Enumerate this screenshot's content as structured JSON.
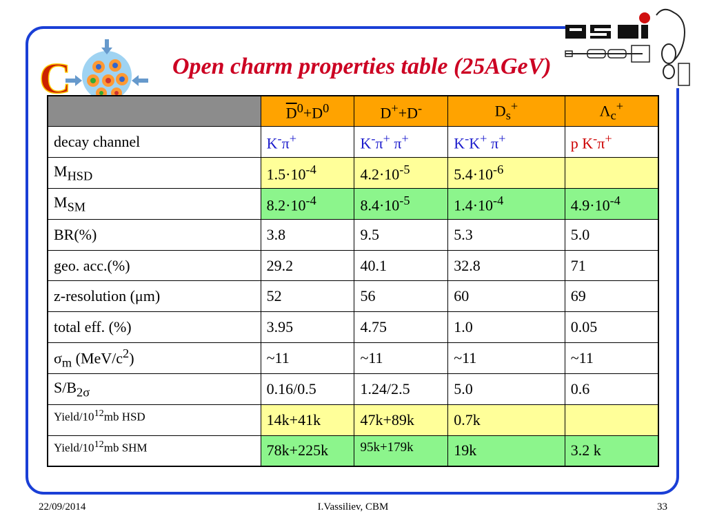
{
  "title": "Open charm properties table (25AGeV)",
  "columns": [
    {
      "main": "D",
      "sup1": "0",
      "mid": "+D",
      "sup2": "0"
    },
    {
      "main": "D",
      "sup1": "+",
      "mid": "+D",
      "sup2": "-"
    },
    {
      "main": "D",
      "sub": "s",
      "sup": "+"
    },
    {
      "main": "Λ",
      "sub": "c",
      "sup": "+"
    }
  ],
  "rows": {
    "decay_channel": {
      "label": "decay channel",
      "c1": {
        "a": "K",
        "as": "-",
        "b": "π",
        "bs": "+"
      },
      "c2": {
        "a": "K",
        "as": "-",
        "b": "π",
        "bs": "+",
        "c": " π",
        "cs": "+"
      },
      "c3": {
        "a": "K",
        "as": "-",
        "b": "K",
        "bs": "+",
        "c": " π",
        "cs": "+"
      },
      "c4": {
        "p": "p ",
        "a": "K",
        "as": "-",
        "b": "π",
        "bs": "+"
      }
    },
    "m_hsd": {
      "label_main": "M",
      "label_sub": "HSD",
      "values": [
        {
          "m": "1.5·10",
          "e": "-4"
        },
        {
          "m": "4.2·10",
          "e": "-5"
        },
        {
          "m": "5.4·10",
          "e": "-6"
        },
        {
          "m": "",
          "e": ""
        }
      ]
    },
    "m_sm": {
      "label_main": "M",
      "label_sub": "SM",
      "values": [
        {
          "m": "8.2·10",
          "e": "-4"
        },
        {
          "m": "8.4·10",
          "e": "-5"
        },
        {
          "m": "1.4·10",
          "e": "-4"
        },
        {
          "m": "4.9·10",
          "e": "-4"
        }
      ]
    },
    "br": {
      "label": "BR(%)",
      "values": [
        "3.8",
        "9.5",
        "5.3",
        "5.0"
      ]
    },
    "geo_acc": {
      "label": "geo. acc.(%)",
      "values": [
        "29.2",
        "40.1",
        "32.8",
        "71"
      ]
    },
    "z_res": {
      "label": "z-resolution (μm)",
      "values": [
        "52",
        "56",
        "60",
        "69"
      ]
    },
    "total_eff": {
      "label": "total eff. (%)",
      "values": [
        "3.95",
        "4.75",
        "1.0",
        "0.05"
      ]
    },
    "sigma_m": {
      "label_main": "σ",
      "label_sub": "m",
      "label_rest": " (MeV/c",
      "label_sup": "2",
      "label_end": ")",
      "values": [
        "~11",
        "~11",
        "~11",
        "~11"
      ]
    },
    "s_b": {
      "label_main": "S/B",
      "label_sub": "2σ",
      "values": [
        "0.16/0.5",
        "1.24/2.5",
        "5.0",
        "0.6"
      ]
    },
    "yield_hsd": {
      "label_a": "Yield/10",
      "label_sup": "12",
      "label_b": "mb HSD",
      "values": [
        "14k+41k",
        "47k+89k",
        " 0.7k",
        ""
      ]
    },
    "yield_shm": {
      "label_a": "Yield/10",
      "label_sup": "12",
      "label_b": "mb SHM",
      "values": [
        "78k+225k",
        "95k+179k",
        "19k",
        "3.2 k"
      ]
    }
  },
  "footer": {
    "date": "22/09/2014",
    "author": "I.Vassiliev, CBM",
    "page": "33"
  },
  "colors": {
    "frame": "#1a3fd6",
    "title": "#cc0022",
    "header": "#ffa300",
    "corner": "#8c8c8c",
    "yellow_row": "#ffff99",
    "green_row": "#8cf58c"
  },
  "logos": {
    "left": "cbm-logo",
    "right": "gsi-logo"
  }
}
